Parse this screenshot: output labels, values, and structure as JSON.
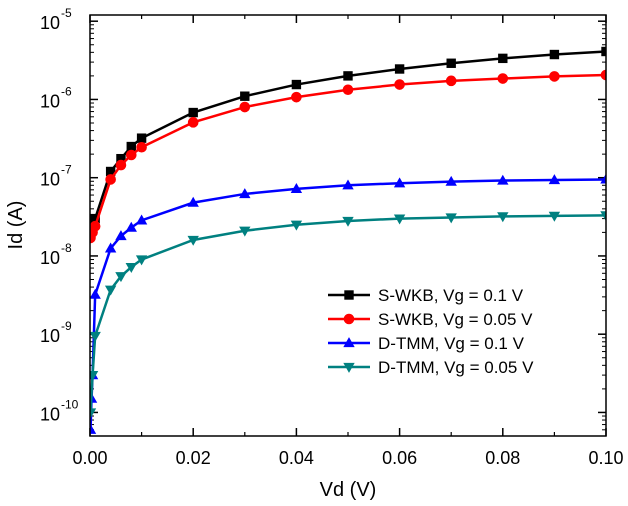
{
  "chart_data": {
    "type": "line",
    "xlabel": "Vd (V)",
    "ylabel": "Id (A)",
    "xlim": [
      0.0,
      0.1
    ],
    "ylim": [
      5e-11,
      1.2e-05
    ],
    "yscale": "log",
    "x_ticks": [
      "0.00",
      "0.02",
      "0.04",
      "0.06",
      "0.08",
      "0.10"
    ],
    "y_ticks": [
      {
        "base": "10",
        "exp": "-5",
        "value": 1e-05
      },
      {
        "base": "10",
        "exp": "-6",
        "value": 1e-06
      },
      {
        "base": "10",
        "exp": "-7",
        "value": 1e-07
      },
      {
        "base": "10",
        "exp": "-8",
        "value": 1e-08
      },
      {
        "base": "10",
        "exp": "-9",
        "value": 1e-09
      },
      {
        "base": "10",
        "exp": "-10",
        "value": 1e-10
      }
    ],
    "grid": false,
    "legend_position": "center-right",
    "series": [
      {
        "name": "S-WKB, Vg = 0.1 V",
        "color": "#000000",
        "marker": "square",
        "x": [
          0.0001,
          0.0005,
          0.001,
          0.004,
          0.006,
          0.008,
          0.01,
          0.02,
          0.03,
          0.04,
          0.05,
          0.06,
          0.07,
          0.08,
          0.09,
          0.1
        ],
        "y": [
          2.3e-08,
          2.7e-08,
          3e-08,
          1.2e-07,
          1.75e-07,
          2.5e-07,
          3.2e-07,
          6.8e-07,
          1.1e-06,
          1.55e-06,
          2e-06,
          2.45e-06,
          2.9e-06,
          3.35e-06,
          3.75e-06,
          4.1e-06
        ]
      },
      {
        "name": "S-WKB, Vg = 0.05 V",
        "color": "#ff0000",
        "marker": "circle",
        "x": [
          0.0001,
          0.0005,
          0.001,
          0.004,
          0.006,
          0.008,
          0.01,
          0.02,
          0.03,
          0.04,
          0.05,
          0.06,
          0.07,
          0.08,
          0.09,
          0.1
        ],
        "y": [
          1.7e-08,
          2e-08,
          2.4e-08,
          9.5e-08,
          1.45e-07,
          1.95e-07,
          2.45e-07,
          5.1e-07,
          8e-07,
          1.07e-06,
          1.33e-06,
          1.55e-06,
          1.73e-06,
          1.85e-06,
          1.97e-06,
          2.05e-06
        ]
      },
      {
        "name": "D-TMM, Vg = 0.1 V",
        "color": "#0000ff",
        "marker": "triangle-up",
        "x": [
          0.0001,
          0.0003,
          0.0005,
          0.001,
          0.004,
          0.006,
          0.008,
          0.01,
          0.02,
          0.03,
          0.04,
          0.05,
          0.06,
          0.07,
          0.08,
          0.09,
          0.1
        ],
        "y": [
          6e-11,
          1.5e-10,
          3e-10,
          3.2e-09,
          1.25e-08,
          1.8e-08,
          2.3e-08,
          2.85e-08,
          4.8e-08,
          6.2e-08,
          7.2e-08,
          8e-08,
          8.5e-08,
          8.9e-08,
          9.2e-08,
          9.35e-08,
          9.5e-08
        ]
      },
      {
        "name": "D-TMM, Vg = 0.05 V",
        "color": "#008080",
        "marker": "triangle-down",
        "x": [
          0.0001,
          0.0005,
          0.001,
          0.004,
          0.006,
          0.008,
          0.01,
          0.02,
          0.03,
          0.04,
          0.05,
          0.06,
          0.07,
          0.08,
          0.09,
          0.1
        ],
        "y": [
          1e-10,
          3e-10,
          9.5e-10,
          3.7e-09,
          5.5e-09,
          7.2e-09,
          9e-09,
          1.6e-08,
          2.1e-08,
          2.5e-08,
          2.8e-08,
          3e-08,
          3.1e-08,
          3.2e-08,
          3.25e-08,
          3.3e-08
        ]
      }
    ]
  }
}
